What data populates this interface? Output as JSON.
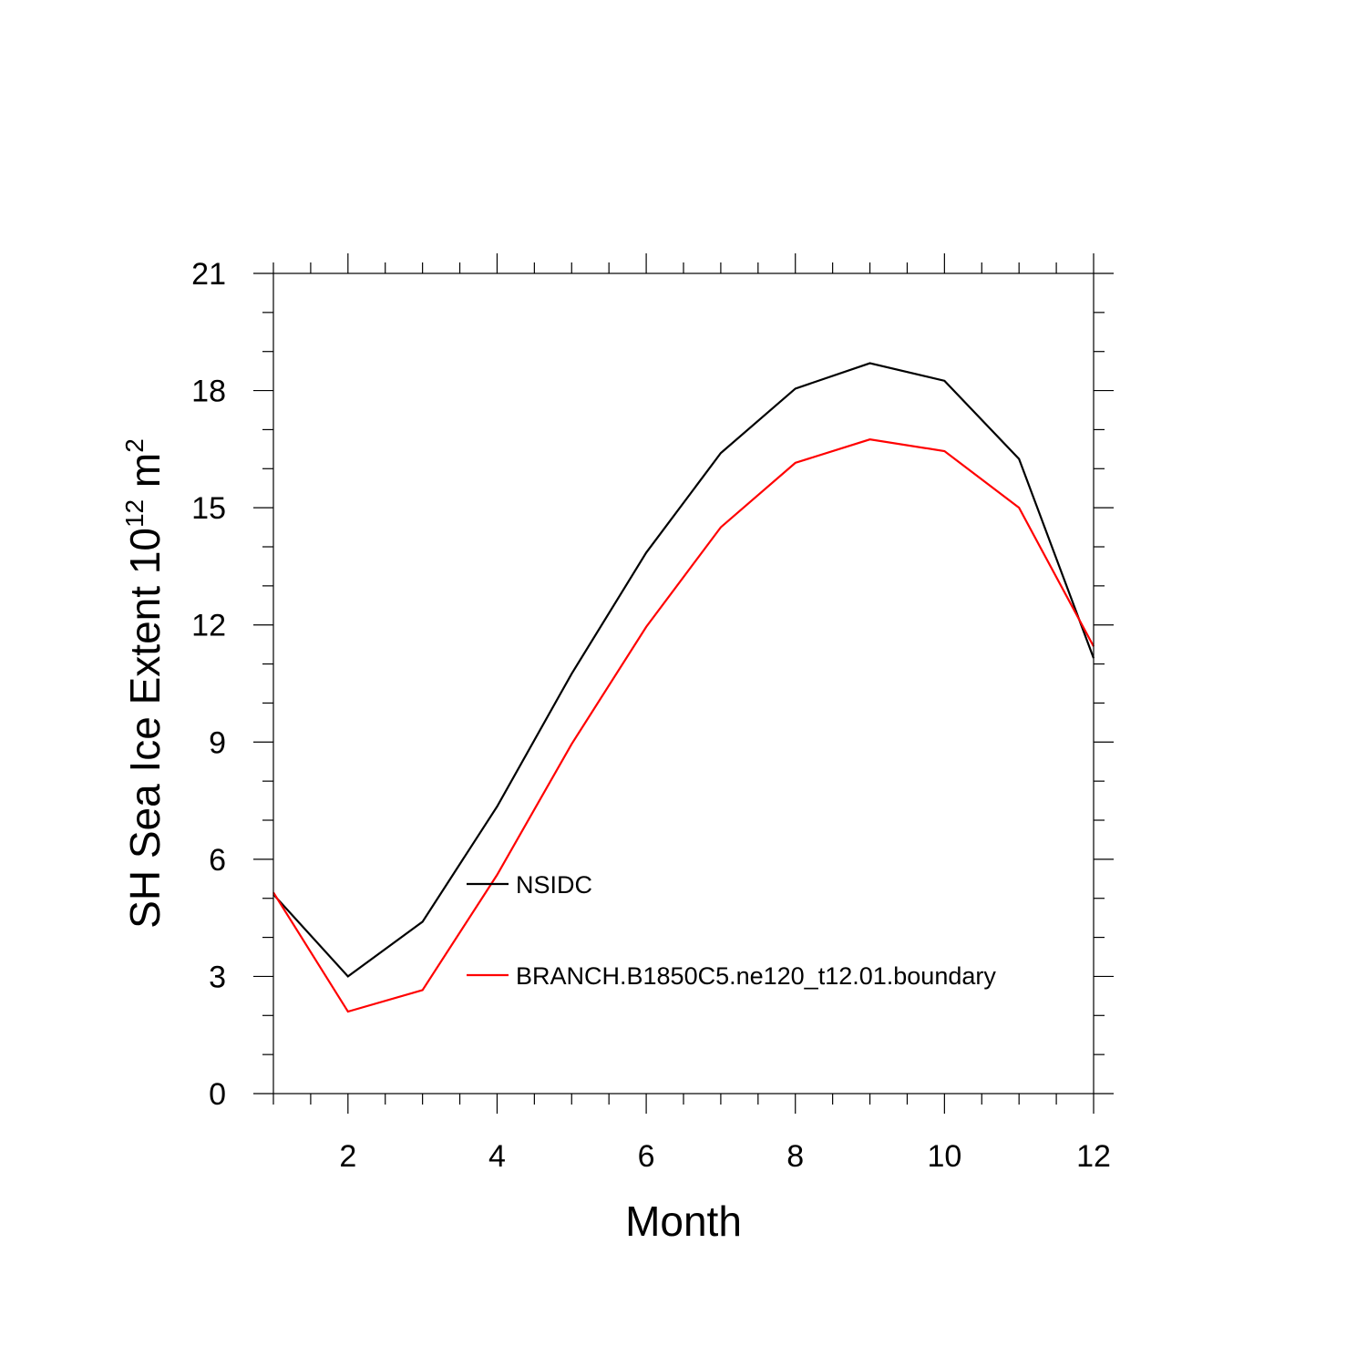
{
  "chart_data": {
    "type": "line",
    "title": "",
    "xlabel": "Month",
    "ylabel": {
      "prefix": "SH Sea Ice Extent 10",
      "exponent": "12",
      "unit": " m",
      "unit_exponent": "2"
    },
    "xlim": [
      1,
      12
    ],
    "ylim": [
      0,
      21
    ],
    "xticks": [
      2,
      4,
      6,
      8,
      10,
      12
    ],
    "yticks": [
      0,
      3,
      6,
      9,
      12,
      15,
      18,
      21
    ],
    "grid": false,
    "legend": "center-left",
    "x": [
      1,
      2,
      3,
      4,
      5,
      6,
      7,
      8,
      9,
      10,
      11,
      12
    ],
    "series": [
      {
        "name": "NSIDC",
        "color": "#000000",
        "values": [
          5.1,
          3.0,
          4.4,
          7.35,
          10.75,
          13.85,
          16.4,
          18.05,
          18.7,
          18.25,
          16.25,
          11.15
        ]
      },
      {
        "name": "BRANCH.B1850C5.ne120_t12.01.boundary",
        "color": "#ff0000",
        "values": [
          5.15,
          2.1,
          2.65,
          5.6,
          8.95,
          11.95,
          14.5,
          16.15,
          16.75,
          16.45,
          15.0,
          11.45
        ]
      }
    ]
  }
}
